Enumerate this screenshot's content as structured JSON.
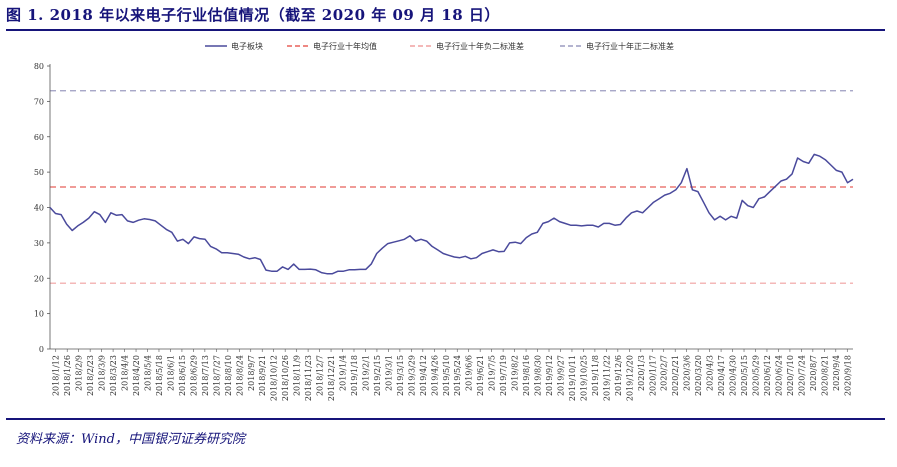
{
  "header": {
    "title": "图 1. 2018 年以来电子行业估值情况（截至 2020 年 09 月 18 日）"
  },
  "footer": {
    "source": "资料来源：Wind，中国银河证券研究院"
  },
  "colors": {
    "brand": "#16147a",
    "series_line": "#4a4a9c",
    "red_dash": "#e8605a",
    "pink_dash": "#f0a0a0",
    "gray_dash": "#9c9cc0"
  },
  "chart_data": {
    "type": "line",
    "title": "",
    "xlabel": "",
    "ylabel": "",
    "ylim": [
      0,
      80
    ],
    "yticks": [
      0,
      10,
      20,
      30,
      40,
      50,
      60,
      70,
      80
    ],
    "grid": false,
    "legend_position": "top",
    "x_tick_labels": [
      "2018/1/12",
      "2018/1/26",
      "2018/2/9",
      "2018/2/23",
      "2018/3/9",
      "2018/3/23",
      "2018/4/4",
      "2018/4/20",
      "2018/5/4",
      "2018/5/18",
      "2018/6/1",
      "2018/6/15",
      "2018/6/29",
      "2018/7/13",
      "2018/7/27",
      "2018/8/10",
      "2018/8/24",
      "2018/9/7",
      "2018/9/21",
      "2018/10/12",
      "2018/10/26",
      "2018/11/9",
      "2018/11/23",
      "2018/12/7",
      "2018/12/21",
      "2019/1/4",
      "2019/1/18",
      "2019/2/1",
      "2019/2/15",
      "2019/3/1",
      "2019/3/15",
      "2019/3/29",
      "2019/4/12",
      "2019/4/26",
      "2019/5/10",
      "2019/5/24",
      "2019/6/6",
      "2019/6/21",
      "2019/7/5",
      "2019/7/19",
      "2019/8/2",
      "2019/8/16",
      "2019/8/30",
      "2019/9/12",
      "2019/9/27",
      "2019/10/11",
      "2019/10/25",
      "2019/11/8",
      "2019/11/22",
      "2019/12/6",
      "2019/12/20",
      "2020/1/3",
      "2020/1/17",
      "2020/2/7",
      "2020/2/21",
      "2020/3/6",
      "2020/3/20",
      "2020/4/3",
      "2020/4/17",
      "2020/4/30",
      "2020/5/15",
      "2020/5/29",
      "2020/6/12",
      "2020/6/24",
      "2020/7/10",
      "2020/7/24",
      "2020/8/7",
      "2020/8/21",
      "2020/9/4",
      "2020/9/18"
    ],
    "series": [
      {
        "name": "电子板块",
        "style": "solid",
        "values": [
          40.0,
          38.3,
          38.0,
          35.3,
          33.5,
          34.8,
          35.8,
          37.0,
          38.8,
          38.0,
          35.8,
          38.5,
          37.8,
          38.0,
          36.2,
          35.8,
          36.4,
          36.8,
          36.6,
          36.2,
          35.0,
          33.8,
          33.0,
          30.5,
          31.0,
          29.8,
          31.7,
          31.2,
          31.0,
          29.0,
          28.3,
          27.2,
          27.2,
          27.0,
          26.8,
          26.0,
          25.5,
          25.8,
          25.3,
          22.3,
          22.0,
          22.0,
          23.2,
          22.5,
          24.0,
          22.5,
          22.5,
          22.6,
          22.4,
          21.6,
          21.3,
          21.3,
          22.0,
          22.0,
          22.4,
          22.4,
          22.5,
          22.5,
          24.0,
          27.0,
          28.5,
          29.8,
          30.2,
          30.6,
          31.0,
          32.0,
          30.5,
          31.0,
          30.5,
          29.0,
          28.0,
          27.0,
          26.5,
          26.0,
          25.8,
          26.2,
          25.5,
          25.8,
          27.0,
          27.5,
          28.0,
          27.5,
          27.6,
          30.0,
          30.2,
          29.8,
          31.5,
          32.5,
          33.0,
          35.5,
          36.0,
          37.0,
          36.0,
          35.5,
          35.0,
          35.0,
          34.8,
          35.0,
          35.0,
          34.5,
          35.5,
          35.5,
          35.0,
          35.2,
          37.0,
          38.5,
          39.0,
          38.5,
          40.0,
          41.5,
          42.5,
          43.5,
          44.0,
          45.0,
          47.0,
          51.0,
          45.0,
          44.5,
          41.5,
          38.5,
          36.5,
          37.5,
          36.5,
          37.5,
          37.0,
          42.0,
          40.5,
          40.0,
          42.5,
          43.0,
          44.5,
          46.0,
          47.5,
          48.0,
          49.5,
          54.0,
          53.0,
          52.5,
          55.0,
          54.5,
          53.5,
          52.0,
          50.5,
          50.0,
          47.0,
          48.0
        ]
      },
      {
        "name": "电子行业十年均值",
        "style": "dashed",
        "constant": 45.8
      },
      {
        "name": "电子行业十年负二标准差",
        "style": "dashed",
        "constant": 18.6
      },
      {
        "name": "电子行业十年正二标准差",
        "style": "dashed",
        "constant": 73.0
      }
    ]
  }
}
